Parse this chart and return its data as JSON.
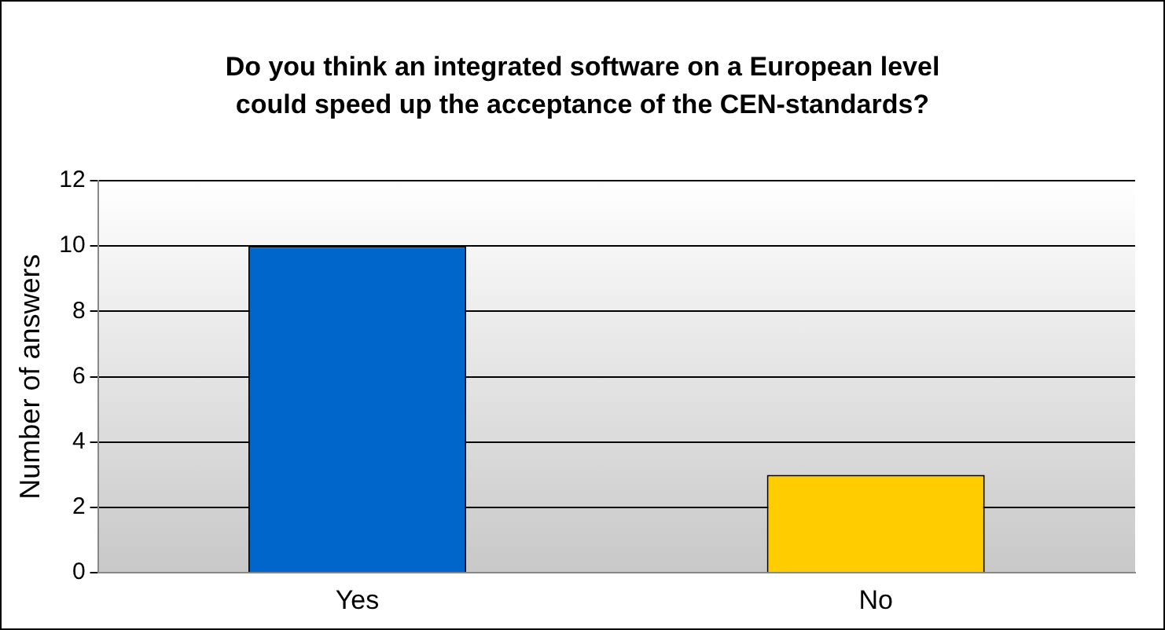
{
  "chart_data": {
    "type": "bar",
    "title": "Do you think an integrated software on a European level could speed up the acceptance of the CEN-standards?",
    "ylabel": "Number of answers",
    "categories": [
      "Yes",
      "No"
    ],
    "values": [
      10,
      3
    ],
    "colors": [
      "#0066cc",
      "#ffcc00"
    ],
    "ylim": [
      0,
      12
    ],
    "yticks": [
      0,
      2,
      4,
      6,
      8,
      10,
      12
    ],
    "grid": "y",
    "legend": false
  }
}
